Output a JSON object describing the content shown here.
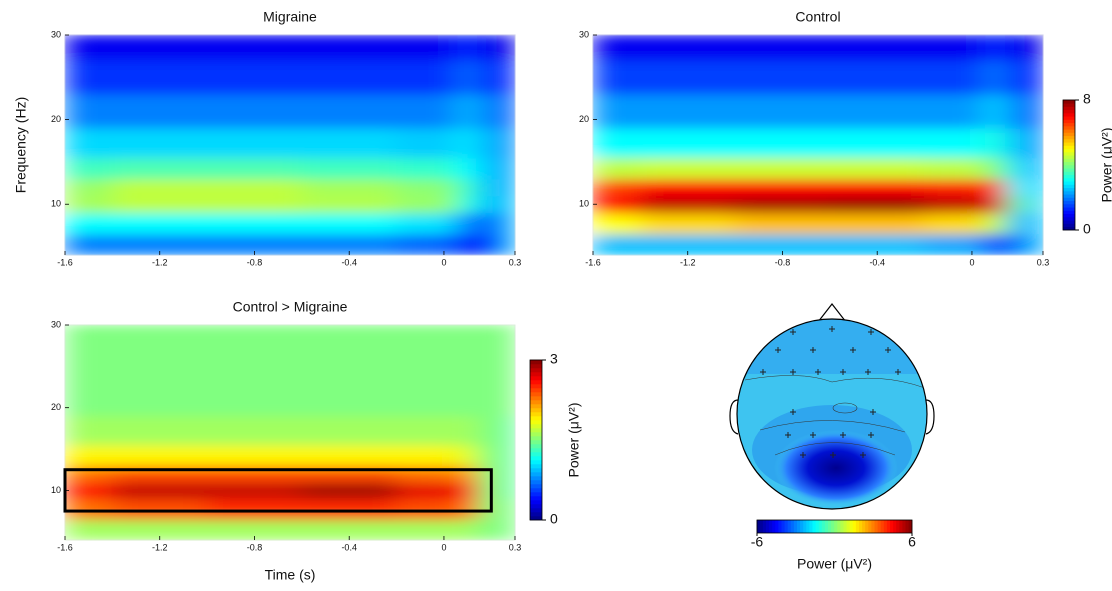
{
  "chart_data": [
    {
      "type": "heatmap",
      "title": "Migraine",
      "y_label": "Frequency (Hz)",
      "colormap": "jet",
      "clim": [
        0,
        8
      ],
      "xlim": [
        -1.6,
        0.3
      ],
      "ylim": [
        4,
        30
      ],
      "xticks": [
        -1.6,
        -1.2,
        -0.8,
        -0.4,
        0,
        0.3
      ],
      "yticks": [
        10,
        20,
        30
      ],
      "x": [
        -1.6,
        -1.2,
        -0.8,
        -0.4,
        0,
        0.1,
        0.2,
        0.3
      ],
      "y": [
        5,
        8,
        10,
        12,
        14,
        17,
        21,
        25,
        29
      ],
      "z": [
        [
          2,
          2,
          2,
          2,
          1.8,
          1.2,
          1.5,
          2.5
        ],
        [
          3,
          3,
          3,
          3,
          2.8,
          2,
          1.8,
          2.5
        ],
        [
          4.3,
          4.5,
          4.5,
          4.4,
          4.2,
          3.2,
          2.5,
          2.5
        ],
        [
          4.2,
          4.5,
          4.5,
          4.3,
          4.1,
          3.4,
          2.5,
          2.3
        ],
        [
          3.5,
          3.6,
          3.6,
          3.5,
          3.4,
          3,
          2.5,
          2.2
        ],
        [
          2.7,
          2.7,
          2.7,
          2.7,
          2.6,
          2.8,
          2.4,
          2
        ],
        [
          2,
          2,
          2,
          2,
          2,
          2.4,
          2,
          1.6
        ],
        [
          1.4,
          1.4,
          1.4,
          1.4,
          1.4,
          1.8,
          1.4,
          1.2
        ],
        [
          0.9,
          0.9,
          0.9,
          0.9,
          0.9,
          1.3,
          0.9,
          0.8
        ]
      ]
    },
    {
      "type": "heatmap",
      "title": "Control",
      "colormap": "jet",
      "clim": [
        0,
        8
      ],
      "cticks": [
        0,
        8
      ],
      "colorbar_label": "Power (μV²)",
      "xlim": [
        -1.6,
        0.3
      ],
      "ylim": [
        4,
        30
      ],
      "xticks": [
        -1.6,
        -1.2,
        -0.8,
        -0.4,
        0,
        0.3
      ],
      "yticks": [
        10,
        20,
        30
      ],
      "x": [
        -1.6,
        -1.2,
        -0.8,
        -0.4,
        0,
        0.1,
        0.2,
        0.3
      ],
      "y": [
        5,
        8,
        10,
        12,
        14,
        17,
        21,
        25,
        29
      ],
      "z": [
        [
          2.5,
          2.5,
          2.5,
          2.5,
          2.3,
          1.5,
          2,
          2.5
        ],
        [
          5,
          5.3,
          5.5,
          5.5,
          5.3,
          4.5,
          2.5,
          2.5
        ],
        [
          7,
          7.5,
          7.7,
          7.8,
          7.5,
          7.2,
          3.5,
          2.5
        ],
        [
          6.5,
          7,
          7,
          7,
          6.8,
          6.5,
          3,
          2.4
        ],
        [
          4.5,
          4.6,
          4.6,
          4.6,
          4.5,
          4,
          2.8,
          2.2
        ],
        [
          3,
          3,
          3,
          3,
          3,
          3.2,
          2.5,
          2
        ],
        [
          2.2,
          2.2,
          2.2,
          2.2,
          2.2,
          2.6,
          2,
          1.6
        ],
        [
          1.5,
          1.5,
          1.5,
          1.5,
          1.5,
          1.9,
          1.4,
          1.2
        ],
        [
          0.9,
          0.9,
          0.9,
          0.9,
          0.9,
          1.3,
          0.9,
          0.8
        ]
      ]
    },
    {
      "type": "heatmap",
      "title": "Control > Migraine",
      "x_label": "Time (s)",
      "colormap": "jet",
      "clim": [
        0,
        3
      ],
      "cticks": [
        0,
        3
      ],
      "colorbar_label": "Power (μV²)",
      "xlim": [
        -1.6,
        0.3
      ],
      "ylim": [
        4,
        30
      ],
      "xticks": [
        -1.6,
        -1.2,
        -0.8,
        -0.4,
        0,
        0.3
      ],
      "yticks": [
        10,
        20,
        30
      ],
      "highlight": {
        "xlim": [
          -1.6,
          0.2
        ],
        "ylim": [
          7.5,
          12.5
        ]
      },
      "x": [
        -1.6,
        -1.2,
        -0.8,
        -0.4,
        0,
        0.1,
        0.2,
        0.3
      ],
      "y": [
        5,
        8,
        10,
        12,
        14,
        17,
        21,
        25,
        29
      ],
      "z": [
        [
          1.6,
          1.6,
          1.6,
          1.6,
          1.6,
          1.6,
          1.5,
          1.5
        ],
        [
          2.3,
          2.4,
          2.5,
          2.5,
          2.4,
          2.3,
          1.5,
          1.5
        ],
        [
          2.6,
          2.8,
          2.8,
          2.9,
          2.7,
          2.6,
          1.5,
          1.4
        ],
        [
          2.3,
          2.4,
          2.4,
          2.4,
          2.3,
          2.2,
          1.5,
          1.4
        ],
        [
          1.9,
          1.9,
          1.9,
          1.9,
          1.9,
          1.8,
          1.5,
          1.4
        ],
        [
          1.6,
          1.6,
          1.6,
          1.6,
          1.6,
          1.6,
          1.5,
          1.4
        ],
        [
          1.5,
          1.5,
          1.5,
          1.5,
          1.5,
          1.5,
          1.5,
          1.5
        ],
        [
          1.5,
          1.5,
          1.5,
          1.5,
          1.5,
          1.5,
          1.5,
          1.5
        ],
        [
          1.5,
          1.5,
          1.5,
          1.5,
          1.5,
          1.5,
          1.5,
          1.5
        ]
      ]
    },
    {
      "type": "topomap",
      "colormap": "jet",
      "clim": [
        -6,
        6
      ],
      "cticks": [
        -6,
        6
      ],
      "colorbar_label": "Power (μV²)"
    }
  ]
}
